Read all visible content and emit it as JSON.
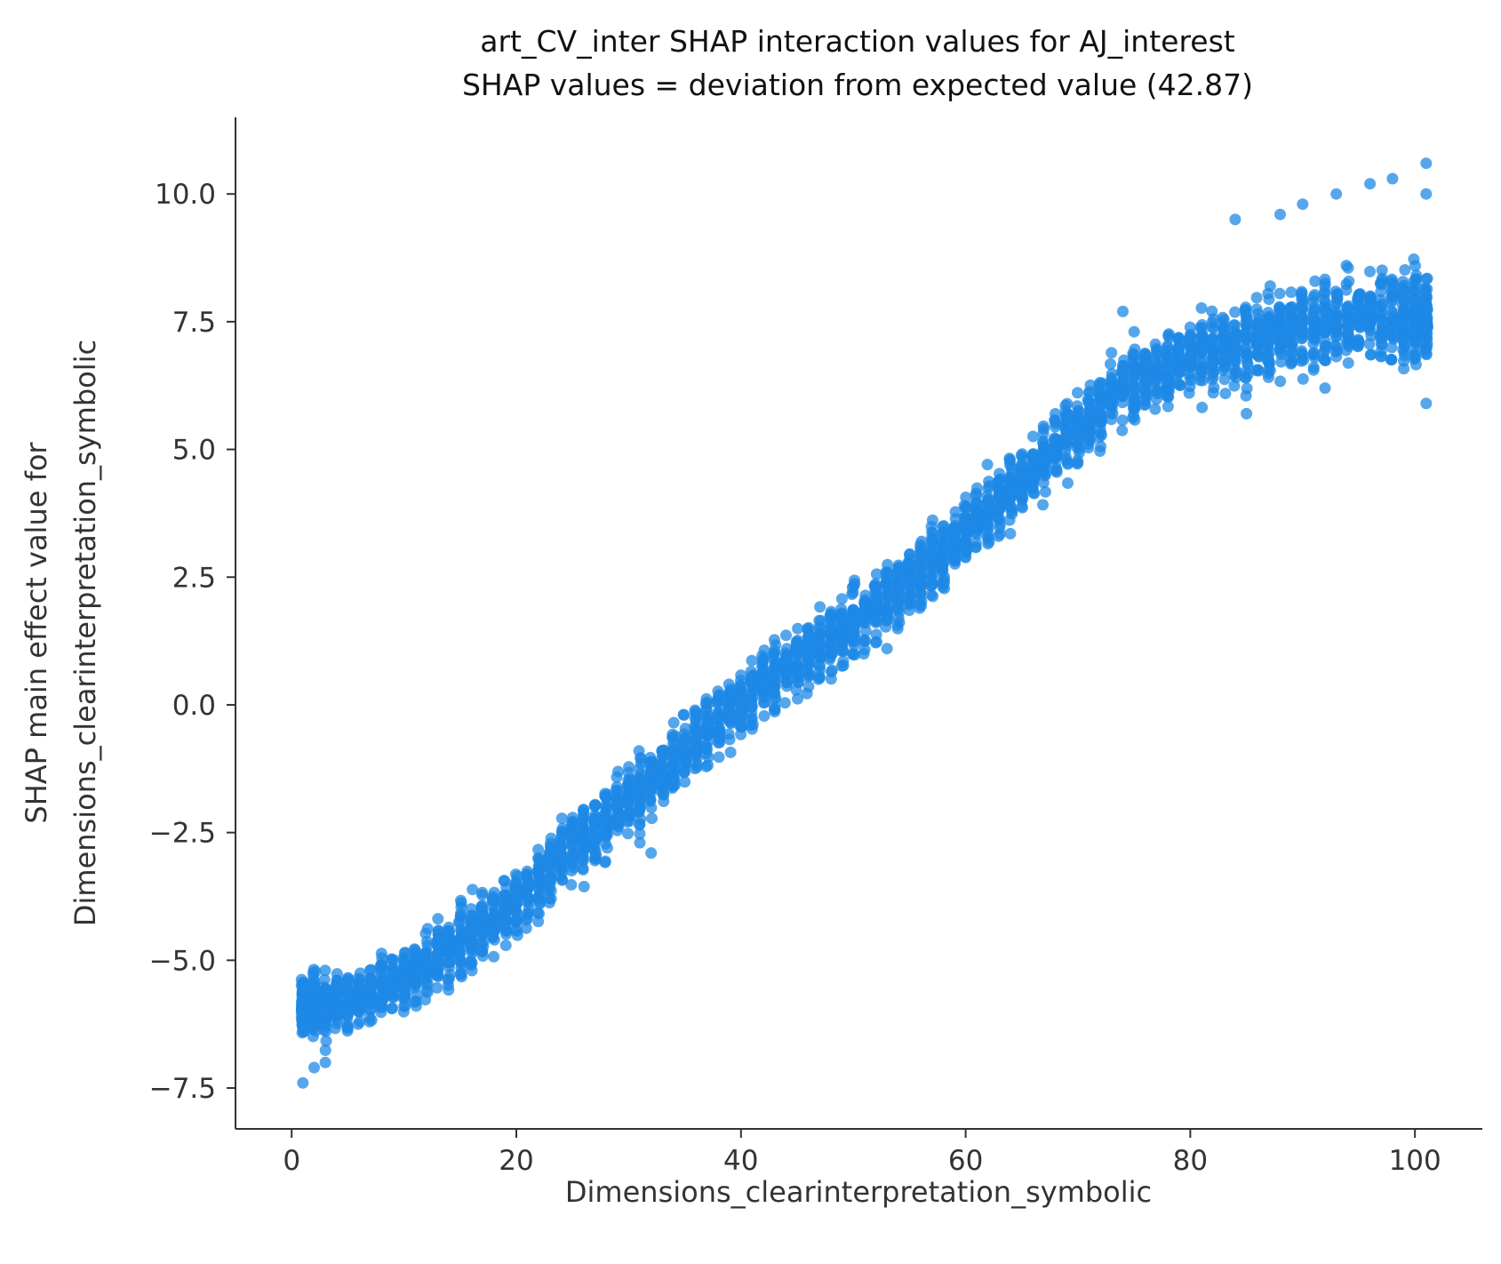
{
  "chart_data": {
    "type": "scatter",
    "title": "art_CV_inter SHAP interaction values for AJ_interest",
    "subtitle": "SHAP values = deviation from expected value (42.87)",
    "xlabel": "Dimensions_clearinterpretation_symbolic",
    "ylabel_line1": "SHAP main effect value for",
    "ylabel_line2": "Dimensions_clearinterpretation_symbolic",
    "xlim": [
      -5,
      106
    ],
    "ylim": [
      -8.3,
      11.5
    ],
    "xticks": [
      0,
      20,
      40,
      60,
      80,
      100
    ],
    "yticks": [
      -7.5,
      -5.0,
      -2.5,
      0.0,
      2.5,
      5.0,
      7.5,
      10.0
    ],
    "xtick_labels": [
      "0",
      "20",
      "40",
      "60",
      "80",
      "100"
    ],
    "ytick_labels": [
      "−7.5",
      "−5.0",
      "−2.5",
      "0.0",
      "2.5",
      "5.0",
      "7.5",
      "10.0"
    ],
    "grid": false,
    "point_color": "#1e88e5",
    "trend_points": [
      {
        "x": 1,
        "y": -5.9
      },
      {
        "x": 5,
        "y": -5.8
      },
      {
        "x": 10,
        "y": -5.4
      },
      {
        "x": 15,
        "y": -4.6
      },
      {
        "x": 20,
        "y": -3.9
      },
      {
        "x": 25,
        "y": -2.7
      },
      {
        "x": 30,
        "y": -1.9
      },
      {
        "x": 35,
        "y": -0.9
      },
      {
        "x": 40,
        "y": 0.1
      },
      {
        "x": 45,
        "y": 0.9
      },
      {
        "x": 50,
        "y": 1.6
      },
      {
        "x": 55,
        "y": 2.4
      },
      {
        "x": 60,
        "y": 3.4
      },
      {
        "x": 65,
        "y": 4.4
      },
      {
        "x": 70,
        "y": 5.5
      },
      {
        "x": 75,
        "y": 6.3
      },
      {
        "x": 80,
        "y": 6.8
      },
      {
        "x": 85,
        "y": 7.1
      },
      {
        "x": 90,
        "y": 7.4
      },
      {
        "x": 95,
        "y": 7.6
      },
      {
        "x": 101,
        "y": 7.6
      }
    ],
    "outliers": [
      {
        "x": 1,
        "y": -7.4
      },
      {
        "x": 2,
        "y": -7.1
      },
      {
        "x": 3,
        "y": -7.0
      },
      {
        "x": 31,
        "y": -2.7
      },
      {
        "x": 32,
        "y": -2.9
      },
      {
        "x": 50,
        "y": 1.0
      },
      {
        "x": 53,
        "y": 1.1
      },
      {
        "x": 47,
        "y": 0.55
      },
      {
        "x": 74,
        "y": 7.7
      },
      {
        "x": 84,
        "y": 9.5
      },
      {
        "x": 88,
        "y": 9.6
      },
      {
        "x": 90,
        "y": 9.8
      },
      {
        "x": 93,
        "y": 10.0
      },
      {
        "x": 96,
        "y": 10.2
      },
      {
        "x": 98,
        "y": 10.3
      },
      {
        "x": 101,
        "y": 10.6
      },
      {
        "x": 101,
        "y": 10.0
      },
      {
        "x": 85,
        "y": 5.7
      },
      {
        "x": 92,
        "y": 6.2
      },
      {
        "x": 101,
        "y": 5.9
      }
    ]
  }
}
